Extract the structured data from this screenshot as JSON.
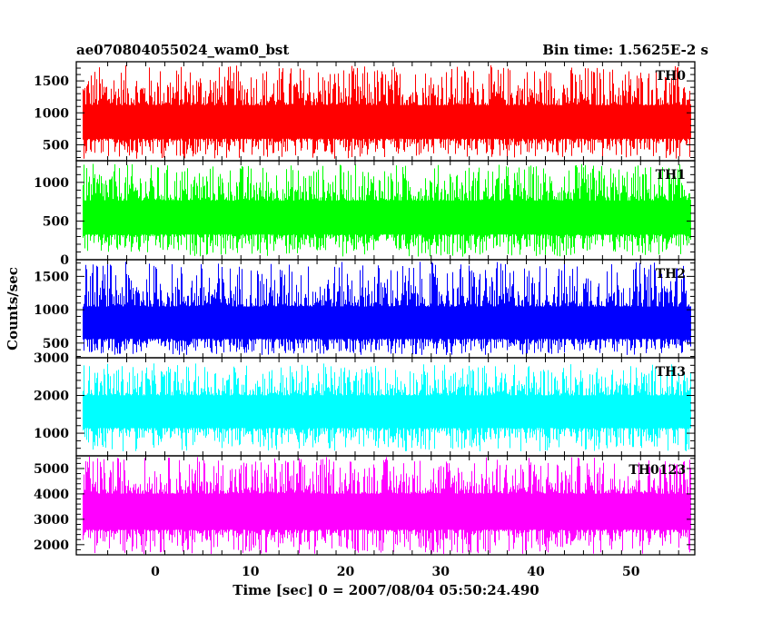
{
  "chart_data": {
    "type": "line",
    "title_left": "ae070804055024_wam0_bst",
    "title_right": "Bin time: 1.5625E-2 s",
    "xlabel": "Time [sec] 0 = 2007/08/04 05:50:24.490",
    "ylabel": "Counts/sec",
    "xlim": [
      -8.3,
      56.7
    ],
    "x_ticks": [
      0,
      10,
      20,
      30,
      40,
      50
    ],
    "x_tick_labels": [
      "0",
      "10",
      "20",
      "30",
      "40",
      "50"
    ],
    "data_x_range": [
      -7.6,
      56.2
    ],
    "bin_time": 0.015625,
    "panels": [
      {
        "name": "TH0",
        "color": "#ff0000",
        "ylim": [
          250,
          1800
        ],
        "y_ticks": [
          500,
          1000,
          1500
        ],
        "y_tick_labels": [
          "500",
          "1000",
          "1500"
        ],
        "mean": 850,
        "base": 280,
        "peak": 1750
      },
      {
        "name": "TH1",
        "color": "#00ff00",
        "ylim": [
          0,
          1280
        ],
        "y_ticks": [
          0,
          500,
          1000
        ],
        "y_tick_labels": [
          "0",
          "500",
          "1000"
        ],
        "mean": 560,
        "base": 40,
        "peak": 1240
      },
      {
        "name": "TH2",
        "color": "#0000ff",
        "ylim": [
          280,
          1750
        ],
        "y_ticks": [
          500,
          1000,
          1500
        ],
        "y_tick_labels": [
          "500",
          "1000",
          "1500"
        ],
        "mean": 760,
        "base": 320,
        "peak": 1720
      },
      {
        "name": "TH3",
        "color": "#00ffff",
        "ylim": [
          400,
          3000
        ],
        "y_ticks": [
          1000,
          2000,
          3000
        ],
        "y_tick_labels": [
          "1000",
          "2000",
          "3000"
        ],
        "mean": 1640,
        "base": 520,
        "peak": 2850
      },
      {
        "name": "TH0123",
        "color": "#ff00ff",
        "ylim": [
          1600,
          5500
        ],
        "y_ticks": [
          2000,
          3000,
          4000,
          5000
        ],
        "y_tick_labels": [
          "2000",
          "3000",
          "4000",
          "5000"
        ],
        "mean": 3380,
        "base": 1620,
        "peak": 5480
      }
    ]
  }
}
